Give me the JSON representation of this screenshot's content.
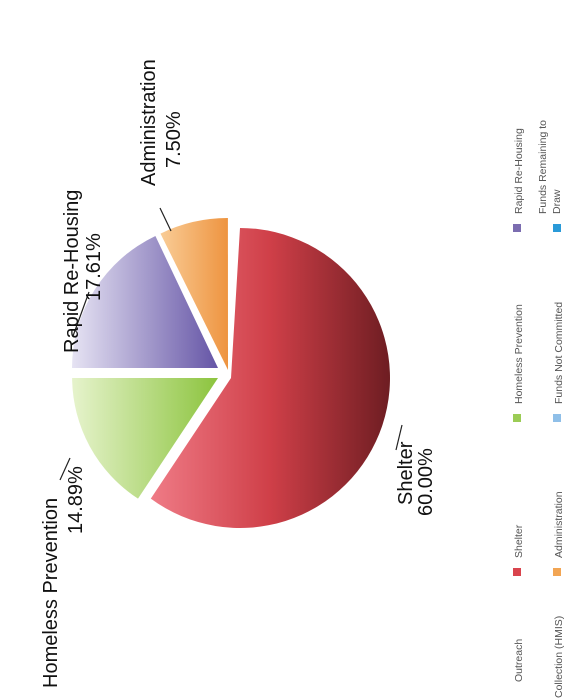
{
  "chart_data": {
    "type": "pie",
    "title": "",
    "slices": [
      {
        "label": "Shelter",
        "value": 60.0,
        "pct": "60.00%",
        "color": "#c8404a",
        "exploded": false
      },
      {
        "label": "Homeless Prevention",
        "value": 14.89,
        "pct": "14.89%",
        "color": "#9bcc55",
        "exploded": true
      },
      {
        "label": "Rapid Re-Housing",
        "value": 17.61,
        "pct": "17.61%",
        "color": "#7b6db0",
        "exploded": true
      },
      {
        "label": "Administration",
        "value": 7.5,
        "pct": "7.50%",
        "color": "#f2a553",
        "exploded": true
      }
    ],
    "legend": {
      "position": "right",
      "items": [
        {
          "label": "Outreach",
          "color": null
        },
        {
          "label": "Collection (HMIS)",
          "color": null
        },
        {
          "label": "Shelter",
          "color": "#d9444d"
        },
        {
          "label": "Administration",
          "color": "#f2a553"
        },
        {
          "label": "Homeless Prevention",
          "color": "#9bcc55"
        },
        {
          "label": "Funds Not Committed",
          "color": "#8fbfe8"
        },
        {
          "label": "Rapid Re-Housing",
          "color": "#7b6db0"
        },
        {
          "label": "Funds Remaining to Draw",
          "color": "#2a9ad8"
        }
      ]
    }
  }
}
